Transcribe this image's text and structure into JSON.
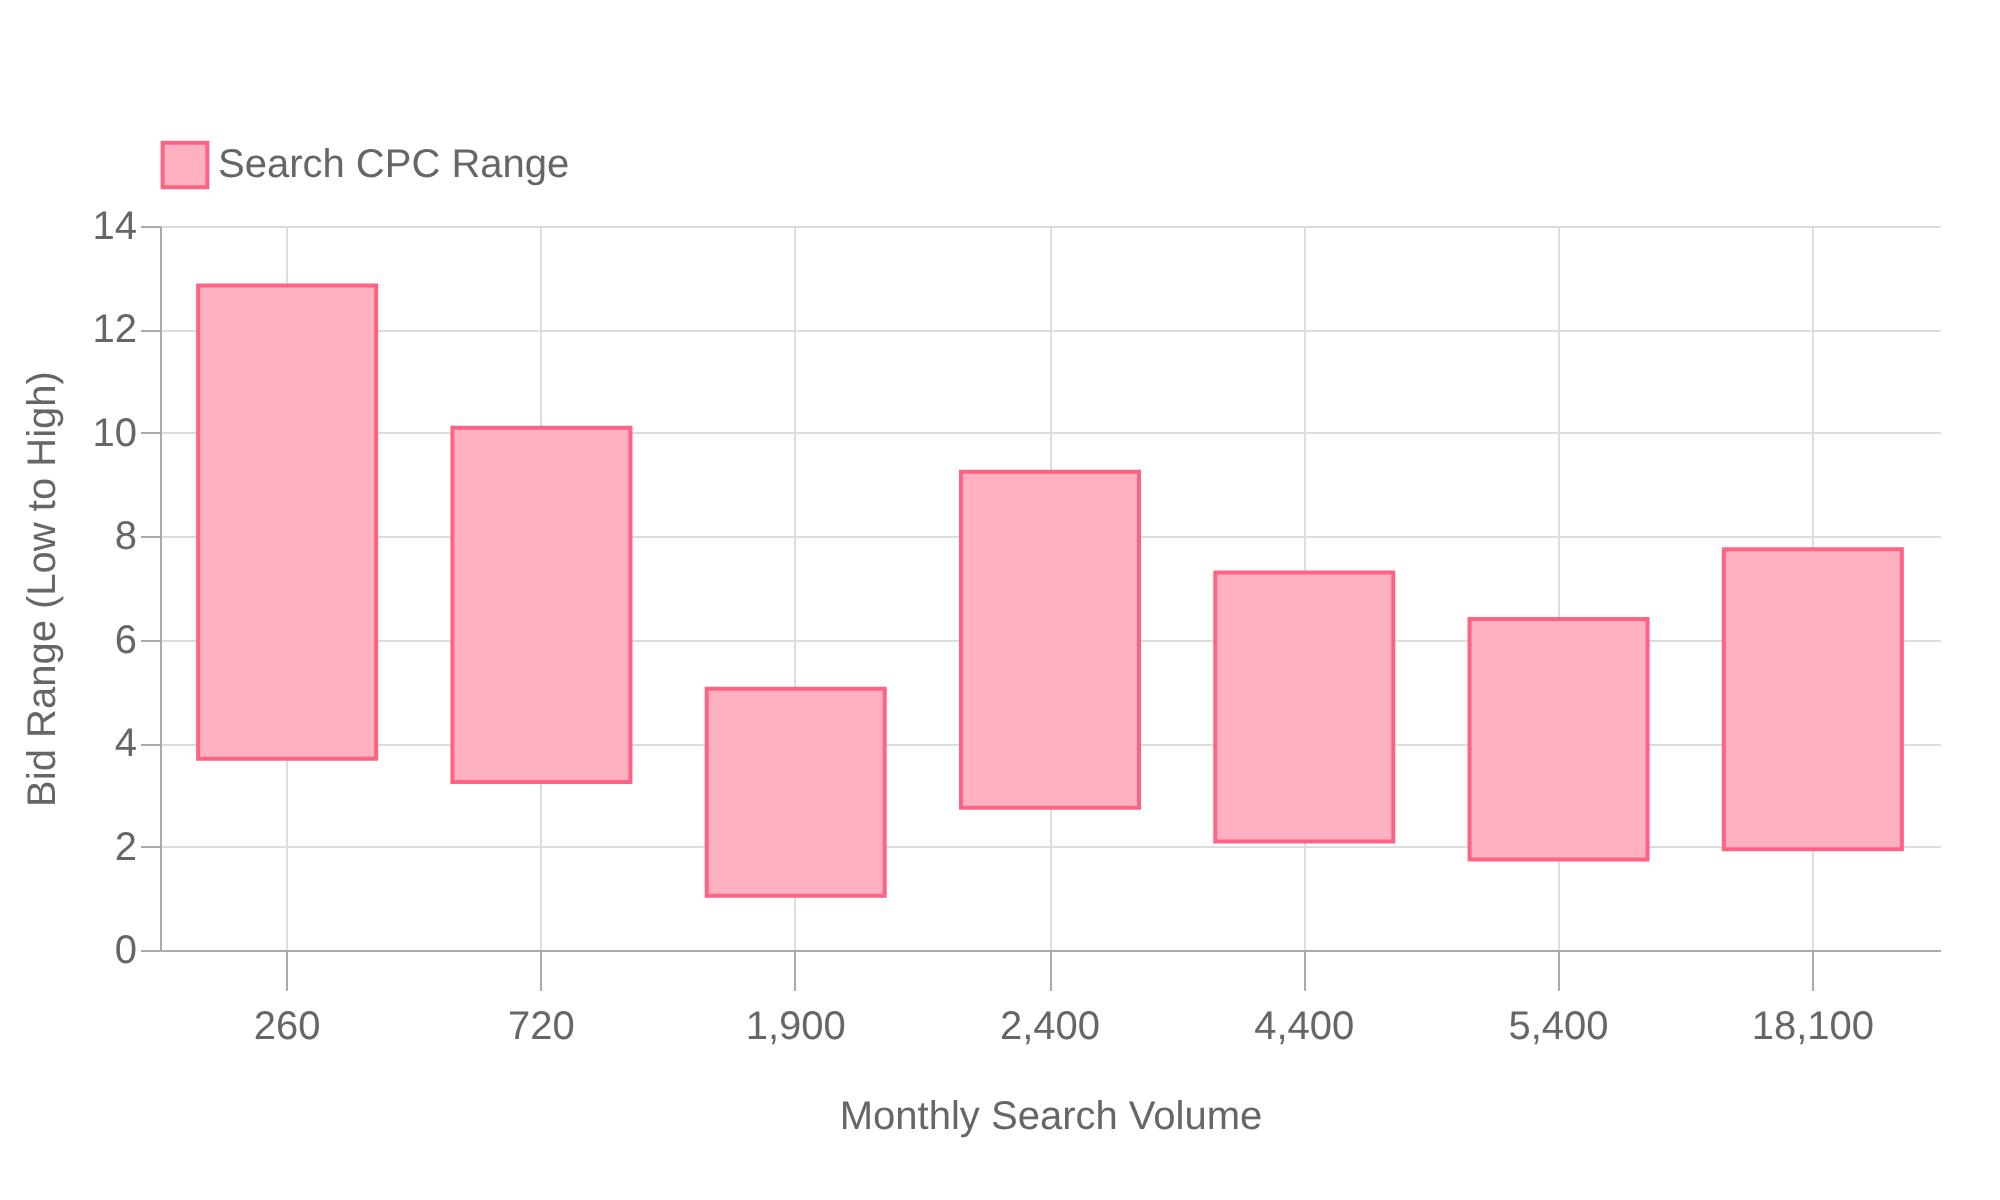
{
  "chart_data": {
    "type": "bar",
    "xlabel": "Monthly Search Volume",
    "ylabel": "Bid Range (Low to High)",
    "categories": [
      "260",
      "720",
      "1,900",
      "2,400",
      "4,400",
      "5,400",
      "18,100"
    ],
    "series": [
      {
        "name": "Search CPC Range",
        "color": "#ffb1c1",
        "base": [
          3.7,
          3.25,
          1.05,
          2.75,
          2.1,
          1.75,
          1.95
        ],
        "values": [
          9.15,
          6.85,
          4.0,
          6.5,
          5.2,
          4.65,
          5.8
        ]
      }
    ],
    "ylim": [
      0,
      14
    ],
    "yticks": [
      0,
      2,
      4,
      6,
      8,
      10,
      12,
      14
    ],
    "grid": true,
    "legend": "top"
  }
}
